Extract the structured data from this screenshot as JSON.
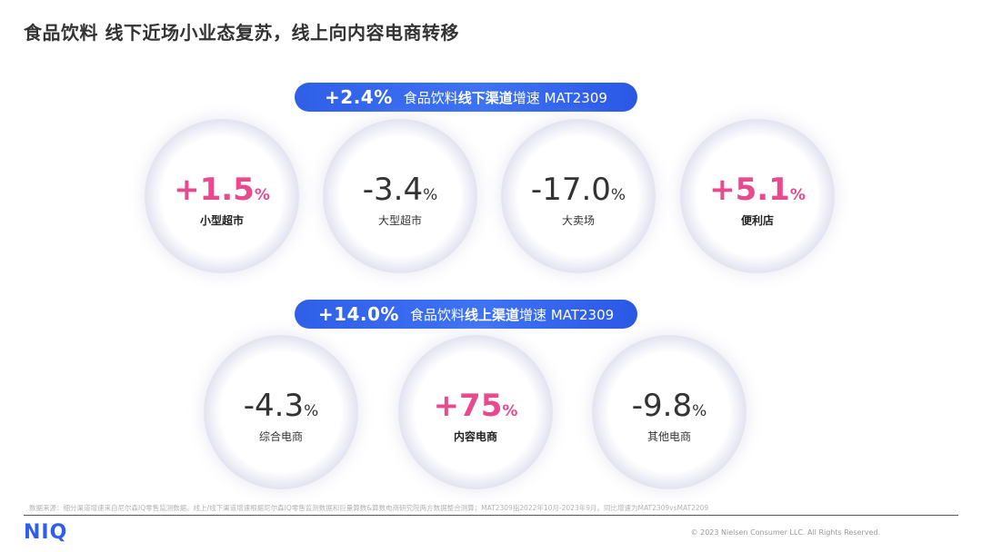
{
  "title": "食品饮料 线下近场小业态复苏，线上向内容电商转移",
  "offline": {
    "growth": "+2.4%",
    "text_pre": "食品饮料",
    "text_bold": "线下渠道",
    "text_post": "增速 MAT2309",
    "channels": [
      {
        "value": "+1.5",
        "pct": "%",
        "label": "小型超市"
      },
      {
        "value": "-3.4",
        "pct": "%",
        "label": "大型超市"
      },
      {
        "value": "-17.0",
        "pct": "%",
        "label": "大卖场"
      },
      {
        "value": "+5.1",
        "pct": "%",
        "label": "便利店"
      }
    ]
  },
  "online": {
    "growth": "+14.0%",
    "text_pre": "食品饮料",
    "text_bold": "线上渠道",
    "text_post": "增速 MAT2309",
    "channels": [
      {
        "value": "-4.3",
        "pct": "%",
        "label": "综合电商"
      },
      {
        "value": "+75",
        "pct": "%",
        "label": "内容电商"
      },
      {
        "value": "-9.8",
        "pct": "%",
        "label": "其他电商"
      }
    ]
  },
  "source": "数据来源：细分渠道增速来自尼尔森IQ零售监测数据。线上/线下渠道增速根据尼尔森IQ零售监测数据和巨量算数&算数电商研究院两方数据整合测算；MAT2309指2022年10月-2023年9月。同比增速为MAT2309vsMAT2209",
  "logo": "NIQ",
  "copyright": "© 2023 Nielsen Consumer LLC. All Rights Reserved.",
  "colors": {
    "accent": "#2f5fe8",
    "positive": "#e84a8d",
    "neutral": "#333333"
  }
}
